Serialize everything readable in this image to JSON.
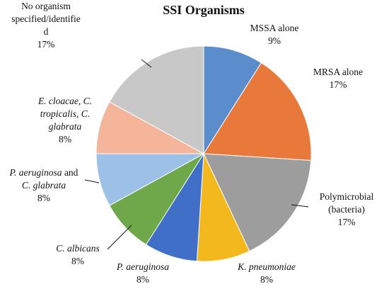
{
  "chart_data": {
    "type": "pie",
    "title": "SSI Organisms",
    "slices": [
      {
        "label_lines": [
          [
            {
              "t": "MSSA alone"
            }
          ],
          [
            {
              "t": "9%"
            }
          ]
        ],
        "value": 9,
        "color": "#5b8ccc"
      },
      {
        "label_lines": [
          [
            {
              "t": "MRSA alone"
            }
          ],
          [
            {
              "t": "17%"
            }
          ]
        ],
        "value": 17,
        "color": "#e8793b"
      },
      {
        "label_lines": [
          [
            {
              "t": "Polymicrobial"
            }
          ],
          [
            {
              "t": "(bacteria)"
            }
          ],
          [
            {
              "t": "17%"
            }
          ]
        ],
        "value": 17,
        "color": "#9d9d9d"
      },
      {
        "label_lines": [
          [
            {
              "t": "K. pneumoniae",
              "i": true
            }
          ],
          [
            {
              "t": "8%"
            }
          ]
        ],
        "value": 8,
        "color": "#f3b81d"
      },
      {
        "label_lines": [
          [
            {
              "t": "P. aeruginosa",
              "i": true
            }
          ],
          [
            {
              "t": "8%"
            }
          ]
        ],
        "value": 8,
        "color": "#3f6fc7"
      },
      {
        "label_lines": [
          [
            {
              "t": "C. albicans",
              "i": true
            }
          ],
          [
            {
              "t": "8%"
            }
          ]
        ],
        "value": 8,
        "color": "#6ea84a"
      },
      {
        "label_lines": [
          [
            {
              "t": "P. aeruginosa",
              "i": true
            },
            {
              "t": " and"
            }
          ],
          [
            {
              "t": "C. glabrata",
              "i": true
            }
          ],
          [
            {
              "t": "8%"
            }
          ]
        ],
        "value": 8,
        "color": "#9cc0e6"
      },
      {
        "label_lines": [
          [
            {
              "t": "E. cloacae, C.",
              "i": true
            }
          ],
          [
            {
              "t": "tropicalis, C.",
              "i": true
            }
          ],
          [
            {
              "t": "glabrata",
              "i": true
            }
          ],
          [
            {
              "t": "8%"
            }
          ]
        ],
        "value": 8,
        "color": "#f4b59a"
      },
      {
        "label_lines": [
          [
            {
              "t": "No organism"
            }
          ],
          [
            {
              "t": "specified/identifie"
            }
          ],
          [
            {
              "t": "d"
            }
          ],
          [
            {
              "t": "17%"
            }
          ]
        ],
        "value": 17,
        "color": "#c8c8c8"
      }
    ]
  }
}
